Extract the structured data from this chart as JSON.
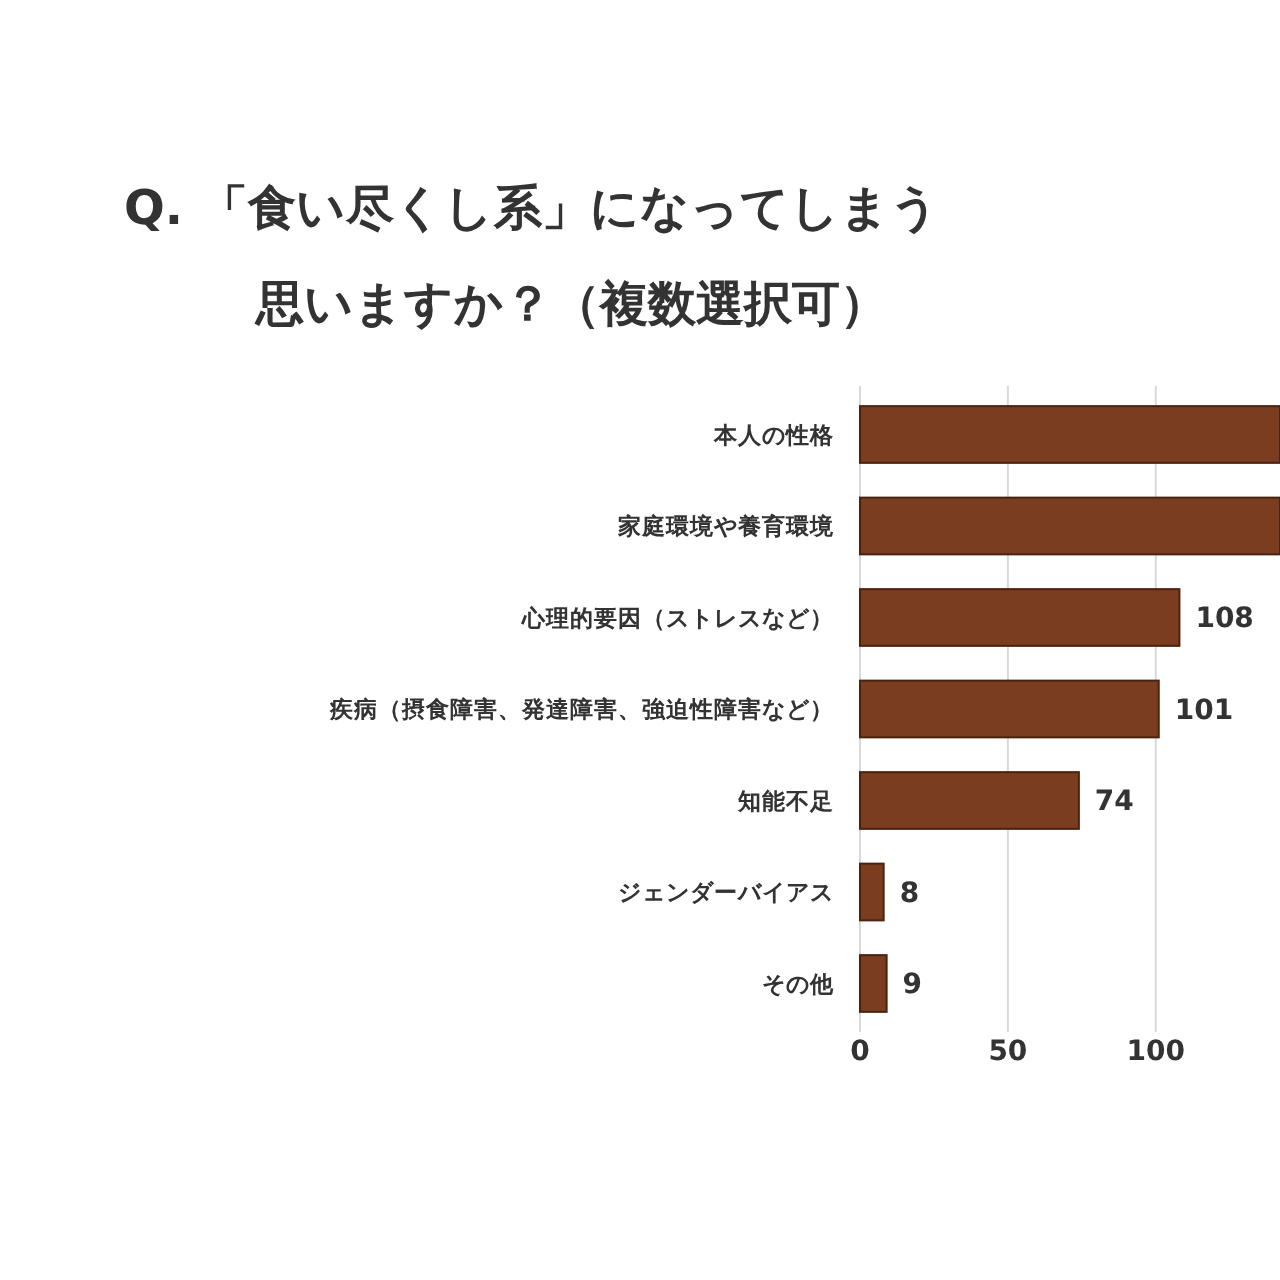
{
  "chart_data": {
    "type": "bar",
    "orientation": "horizontal",
    "title": "Q. 「食い尽くし系」になってしまう",
    "subtitle": "思いますか？（複数選択可）",
    "categories": [
      "本人の性格",
      "家庭環境や養育環境",
      "心理的要因（ストレスなど）",
      "疾病（摂食障害、発達障害、強迫性障害など）",
      "知能不足",
      "ジェンダーバイアス",
      "その他"
    ],
    "values": [
      142,
      142,
      108,
      101,
      74,
      8,
      9
    ],
    "value_labels": [
      null,
      null,
      "108",
      "101",
      "74",
      "8",
      "9"
    ],
    "color": "#7a3d1f",
    "xlim": [
      0,
      142
    ],
    "xticks": [
      0,
      50,
      100
    ],
    "grid": "x"
  }
}
